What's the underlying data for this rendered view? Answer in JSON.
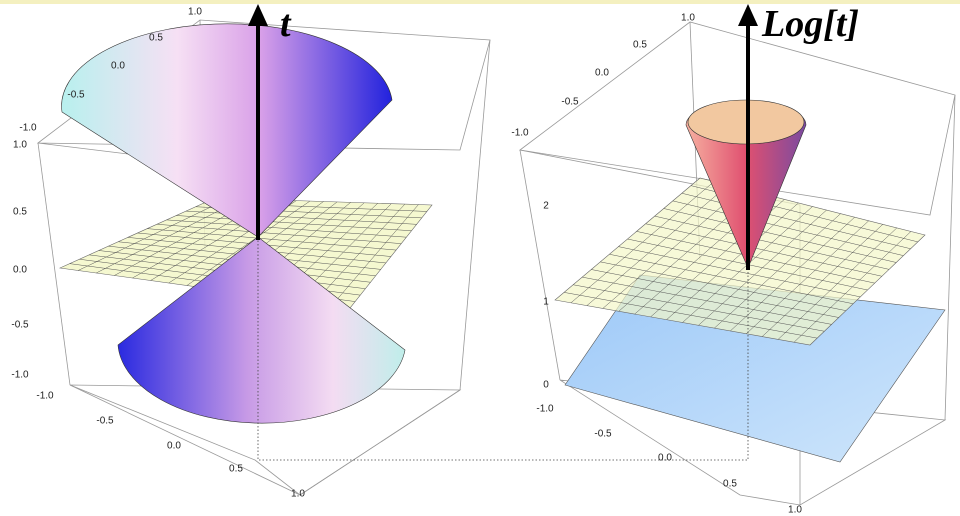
{
  "left": {
    "axis_label": "t",
    "top_ticks": [
      "1.0",
      "0.5",
      "0.0",
      "-0.5",
      "-1.0"
    ],
    "vertical_ticks": [
      "1.0",
      "0.5",
      "0.0",
      "-0.5",
      "-1.0"
    ],
    "bottom_ticks": [
      "-1.0",
      "-0.5",
      "0.0",
      "0.5",
      "1.0"
    ]
  },
  "right": {
    "axis_label": "Log[t]",
    "top_ticks": [
      "1.0",
      "0.5",
      "0.0",
      "-0.5",
      "-1.0"
    ],
    "vertical_ticks": [
      "2",
      "1",
      "0"
    ],
    "bottom_ticks": [
      "-1.0",
      "-0.5",
      "0.0",
      "0.5",
      "1.0"
    ]
  }
}
